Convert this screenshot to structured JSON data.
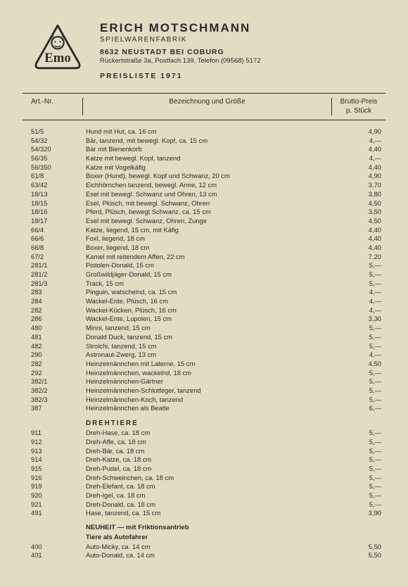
{
  "header": {
    "company": "ERICH MOTSCHMANN",
    "subtitle": "SPIELWARENFABRIK",
    "address1": "8632 NEUSTADT BEI COBURG",
    "address2": "Rückertstraße 3a, Postfach 139, Telefon (09568) 5172",
    "pricelist": "PREISLISTE 1971",
    "logo_text": "Emo"
  },
  "columns": {
    "art": "Art.-Nr.",
    "desc": "Bezeichnung und Größe",
    "price1": "Brutto-Preis",
    "price2": "p. Stück"
  },
  "rows": [
    {
      "a": "51/5",
      "d": "Hund mit Hut, ca. 16 cm",
      "p": "4,90"
    },
    {
      "a": "54/32",
      "d": "Bär, tanzend, mit bewegl. Kopf, ca. 15 cm",
      "p": "4,—"
    },
    {
      "a": "54/320",
      "d": "Bär mit Bienenkorb",
      "p": "4,40"
    },
    {
      "a": "56/35",
      "d": "Katze mit bewegl. Kopf, tanzend",
      "p": "4,—"
    },
    {
      "a": "56/350",
      "d": "Katze mit Vogelkäfig",
      "p": "4,40"
    },
    {
      "a": "61/8",
      "d": "Boxer (Hund), bewegl. Kopf und Schwanz, 20 cm",
      "p": "4,90"
    },
    {
      "a": "63/42",
      "d": "Eichhörnchen tanzend, bewegl. Arme, 12 cm",
      "p": "3,70"
    },
    {
      "a": "18/13",
      "d": "Esel mit bewegl. Schwanz und Ohren, 13 cm",
      "p": "3,80"
    },
    {
      "a": "18/15",
      "d": "Esel, Plüsch, mit bewegl. Schwanz, Ohren",
      "p": "4,50"
    },
    {
      "a": "18/16",
      "d": "Pferd, Plüsch, bewegt Schwanz, ca. 15 cm",
      "p": "3,50"
    },
    {
      "a": "18/17",
      "d": "Esel mit bewegl. Schwanz, Ohren, Zunge",
      "p": "4,50"
    },
    {
      "a": "66/4",
      "d": "Katze, liegend, 15 cm, mit Käfig",
      "p": "4,40"
    },
    {
      "a": "66/6",
      "d": "Foxl, liegend, 18 cm",
      "p": "4,40"
    },
    {
      "a": "66/8",
      "d": "Boxer, liegend, 18 cm",
      "p": "4,40"
    },
    {
      "a": "67/2",
      "d": "Kamel mit reitendem Affen, 22 cm",
      "p": "7,20"
    },
    {
      "a": "281/1",
      "d": "Pistolen-Donald, 15 cm",
      "p": "5,—"
    },
    {
      "a": "281/2",
      "d": "Großwildjäger-Donald, 15 cm",
      "p": "5,—"
    },
    {
      "a": "281/3",
      "d": "Track, 15 cm",
      "p": "5,—"
    },
    {
      "a": "283",
      "d": "Pinguin, watschelnd, ca. 15 cm",
      "p": "4,—"
    },
    {
      "a": "284",
      "d": "Wackel-Ente, Plüsch, 16 cm",
      "p": "4,—"
    },
    {
      "a": "282",
      "d": "Wackel-Kücken, Plüsch, 16 cm",
      "p": "4,—"
    },
    {
      "a": "286",
      "d": "Wackel-Ente, Lupolen, 15 cm",
      "p": "3,30"
    },
    {
      "a": "480",
      "d": "Minni, tanzend, 15 cm",
      "p": "5,—"
    },
    {
      "a": "481",
      "d": "Donald Duck, tanzend, 15 cm",
      "p": "5,—"
    },
    {
      "a": "482",
      "d": "Strolchi, tanzend, 15 cm",
      "p": "5,—"
    },
    {
      "a": "290",
      "d": "Astronaut-Zwerg, 13 cm",
      "p": "4,—"
    },
    {
      "a": "282",
      "d": "Heinzelmännchen mit Laterne, 15 cm",
      "p": "4,50"
    },
    {
      "a": "292",
      "d": "Heinzelmännchen, wackelnd, 18 cm",
      "p": "5,—"
    },
    {
      "a": "382/1",
      "d": "Heinzelmännchen-Gärtner",
      "p": "5,—"
    },
    {
      "a": "382/2",
      "d": "Heinzelmännchen-Schlotfeger, tanzend",
      "p": "5,—"
    },
    {
      "a": "382/3",
      "d": "Heinzelmännchen-Koch, tanzend",
      "p": "5,—"
    },
    {
      "a": "387",
      "d": "Heinzelmännchen als Beatle",
      "p": "6,—"
    }
  ],
  "section1": {
    "title": "DREHTIERE"
  },
  "rows2": [
    {
      "a": "911",
      "d": "Dreh-Hase, ca. 18 cm",
      "p": "5,—"
    },
    {
      "a": "912",
      "d": "Dreh-Affe, ca. 18 cm",
      "p": "5,—"
    },
    {
      "a": "913",
      "d": "Dreh-Bär, ca. 18 cm",
      "p": "5,—"
    },
    {
      "a": "914",
      "d": "Dreh-Katze, ca. 18 cm",
      "p": "5,—"
    },
    {
      "a": "915",
      "d": "Dreh-Pudel, ca. 18 cm",
      "p": "5,—"
    },
    {
      "a": "916",
      "d": "Dreh-Schweinchen, ca. 18 cm",
      "p": "5,—"
    },
    {
      "a": "919",
      "d": "Dreh-Elefant, ca. 18 cm",
      "p": "5,—"
    },
    {
      "a": "920",
      "d": "Dreh-Igel, ca. 18 cm",
      "p": "5,—"
    },
    {
      "a": "921",
      "d": "Dreh-Donald, ca. 18 cm",
      "p": "5,—"
    },
    {
      "a": "491",
      "d": "Hase, tanzend, ca. 15 cm",
      "p": "3,90"
    }
  ],
  "section2": {
    "line1": "NEUHEIT — mit Friktionsantrieb",
    "line2": "Tiere als Autofahrer"
  },
  "rows3": [
    {
      "a": "400",
      "d": "Auto-Micky, ca. 14 cm",
      "p": "5,50"
    },
    {
      "a": "401",
      "d": "Auto-Donald, ca. 14 cm",
      "p": "5,50"
    }
  ]
}
